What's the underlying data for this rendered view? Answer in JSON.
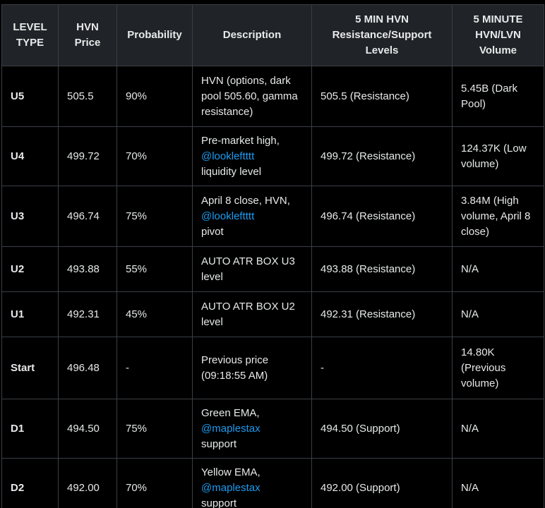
{
  "table": {
    "headers": [
      "LEVEL TYPE",
      "HVN Price",
      "Probability",
      "Description",
      "5 MIN HVN Resistance/Support Levels",
      "5 MINUTE HVN/LVN Volume"
    ],
    "rows": [
      {
        "level_type": "U5",
        "hvn_price": "505.5",
        "probability": "90%",
        "description": "HVN (options, dark pool 505.60, gamma resistance)",
        "mention": "",
        "description_suffix": "",
        "levels": "505.5 (Resistance)",
        "volume": "5.45B (Dark Pool)"
      },
      {
        "level_type": "U4",
        "hvn_price": "499.72",
        "probability": "70%",
        "description": "Pre-market high,",
        "mention": "@lookleftttt",
        "description_suffix": " liquidity level",
        "levels": "499.72 (Resistance)",
        "volume": "124.37K (Low volume)"
      },
      {
        "level_type": "U3",
        "hvn_price": "496.74",
        "probability": "75%",
        "description": "April 8 close, HVN,",
        "mention": "@lookleftttt",
        "description_suffix": " pivot",
        "levels": "496.74 (Resistance)",
        "volume": "3.84M (High volume, April 8 close)"
      },
      {
        "level_type": "U2",
        "hvn_price": "493.88",
        "probability": "55%",
        "description": "AUTO ATR BOX U3 level",
        "mention": "",
        "description_suffix": "",
        "levels": "493.88 (Resistance)",
        "volume": "N/A"
      },
      {
        "level_type": "U1",
        "hvn_price": "492.31",
        "probability": "45%",
        "description": "AUTO ATR BOX U2 level",
        "mention": "",
        "description_suffix": "",
        "levels": "492.31 (Resistance)",
        "volume": "N/A"
      },
      {
        "level_type": "Start",
        "hvn_price": "496.48",
        "probability": "-",
        "description": "Previous price (09:18:55 AM)",
        "mention": "",
        "description_suffix": "",
        "levels": "-",
        "volume": "14.80K (Previous volume)"
      },
      {
        "level_type": "D1",
        "hvn_price": "494.50",
        "probability": "75%",
        "description": "Green EMA,",
        "mention": "@maplestax",
        "description_suffix": " support",
        "levels": "494.50 (Support)",
        "volume": "N/A"
      },
      {
        "level_type": "D2",
        "hvn_price": "492.00",
        "probability": "70%",
        "description": "Yellow EMA,",
        "mention": "@maplestax",
        "description_suffix": " support",
        "levels": "492.00 (Support)",
        "volume": "N/A"
      }
    ]
  },
  "colors": {
    "background": "#000000",
    "header_background": "#202327",
    "border": "#3a3f45",
    "text": "#e7e9ea",
    "mention": "#1d9bf0"
  }
}
